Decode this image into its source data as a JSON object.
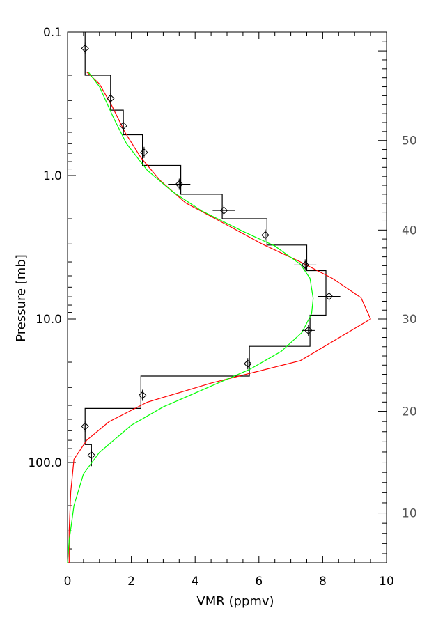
{
  "chart_data": {
    "type": "line",
    "xlabel": "VMR (ppmv)",
    "ylabel": "Pressure [mb]",
    "xlim": [
      0,
      10
    ],
    "ylim": [
      0.1,
      500
    ],
    "y_scale": "log",
    "y_reversed": true,
    "x_ticks": [
      0,
      2,
      4,
      6,
      8,
      10
    ],
    "x_tick_labels": [
      "0",
      "2",
      "4",
      "6",
      "8",
      "10"
    ],
    "y_ticks": [
      0.1,
      1.0,
      10.0,
      100.0
    ],
    "y_tick_labels": [
      "0.1",
      "1.0",
      "10.0",
      "100.0"
    ],
    "right_axis_ticks": [
      {
        "label": "10",
        "pressure": 225
      },
      {
        "label": "20",
        "pressure": 44
      },
      {
        "label": "30",
        "pressure": 10.0
      },
      {
        "label": "40",
        "pressure": 2.4
      },
      {
        "label": "50",
        "pressure": 0.57
      }
    ],
    "series": [
      {
        "color": "#000000",
        "style": "step",
        "points": [
          [
            0.55,
            0.1
          ],
          [
            0.55,
            0.2
          ],
          [
            1.35,
            0.2
          ],
          [
            1.35,
            0.35
          ],
          [
            1.75,
            0.35
          ],
          [
            1.75,
            0.52
          ],
          [
            2.35,
            0.52
          ],
          [
            2.35,
            0.85
          ],
          [
            3.55,
            0.85
          ],
          [
            3.55,
            1.35
          ],
          [
            4.85,
            1.35
          ],
          [
            4.85,
            2.0
          ],
          [
            6.25,
            2.0
          ],
          [
            6.25,
            3.05
          ],
          [
            7.5,
            3.05
          ],
          [
            7.5,
            4.6
          ],
          [
            8.1,
            4.6
          ],
          [
            8.1,
            7.0
          ],
          [
            8.1,
            9.4
          ],
          [
            7.6,
            9.4
          ],
          [
            7.6,
            15.5
          ],
          [
            5.7,
            15.5
          ],
          [
            5.7,
            25.0
          ],
          [
            2.3,
            25.0
          ],
          [
            2.3,
            42.0
          ],
          [
            0.55,
            42.0
          ],
          [
            0.55,
            75.0
          ],
          [
            0.75,
            75.0
          ],
          [
            0.75,
            106.0
          ]
        ]
      },
      {
        "color": "#ff0000",
        "style": "line",
        "points": [
          [
            0.05,
            500
          ],
          [
            0.05,
            300
          ],
          [
            0.1,
            160
          ],
          [
            0.2,
            95
          ],
          [
            0.6,
            70
          ],
          [
            1.3,
            52
          ],
          [
            2.5,
            38
          ],
          [
            4.5,
            28
          ],
          [
            7.3,
            19.5
          ],
          [
            9.5,
            10.0
          ],
          [
            9.2,
            7.1
          ],
          [
            8.3,
            5.2
          ],
          [
            7.3,
            4.0
          ],
          [
            6.1,
            3.0
          ],
          [
            4.9,
            2.15
          ],
          [
            3.7,
            1.55
          ],
          [
            2.9,
            1.08
          ],
          [
            2.3,
            0.75
          ],
          [
            1.8,
            0.5
          ],
          [
            1.4,
            0.33
          ],
          [
            1.0,
            0.23
          ],
          [
            0.6,
            0.19
          ]
        ]
      },
      {
        "color": "#00ff00",
        "style": "line",
        "points": [
          [
            0.0,
            500
          ],
          [
            0.05,
            350
          ],
          [
            0.2,
            200
          ],
          [
            0.5,
            120
          ],
          [
            1.0,
            85
          ],
          [
            2.0,
            55
          ],
          [
            3.0,
            41
          ],
          [
            4.4,
            30
          ],
          [
            5.7,
            22.5
          ],
          [
            6.7,
            16.8
          ],
          [
            7.35,
            12.4
          ],
          [
            7.65,
            9.2
          ],
          [
            7.7,
            7.2
          ],
          [
            7.6,
            5.2
          ],
          [
            7.3,
            4.15
          ],
          [
            6.5,
            3.1
          ],
          [
            5.5,
            2.45
          ],
          [
            4.2,
            1.76
          ],
          [
            3.3,
            1.3
          ],
          [
            2.5,
            0.92
          ],
          [
            1.85,
            0.6
          ],
          [
            1.45,
            0.4
          ],
          [
            1.0,
            0.24
          ],
          [
            0.65,
            0.19
          ]
        ]
      }
    ],
    "markers": [
      {
        "x": 0.55,
        "p": 0.13,
        "xerr": 0.0
      },
      {
        "x": 1.35,
        "p": 0.29,
        "xerr": 0.0
      },
      {
        "x": 1.75,
        "p": 0.45,
        "xerr": 0.0
      },
      {
        "x": 2.4,
        "p": 0.69,
        "xerr": 0.0
      },
      {
        "x": 3.5,
        "p": 1.15,
        "xerr": 0.35
      },
      {
        "x": 4.9,
        "p": 1.75,
        "xerr": 0.35
      },
      {
        "x": 6.2,
        "p": 2.6,
        "xerr": 0.45
      },
      {
        "x": 7.45,
        "p": 4.2,
        "xerr": 0.35
      },
      {
        "x": 8.2,
        "p": 6.95,
        "xerr": 0.35
      },
      {
        "x": 7.55,
        "p": 12.0,
        "xerr": 0.2
      },
      {
        "x": 5.65,
        "p": 20.5,
        "xerr": 0.0
      },
      {
        "x": 2.35,
        "p": 34.0,
        "xerr": 0.0
      },
      {
        "x": 0.55,
        "p": 56.0,
        "xerr": 0.0
      },
      {
        "x": 0.75,
        "p": 89.0,
        "xerr": 0.0
      }
    ]
  }
}
